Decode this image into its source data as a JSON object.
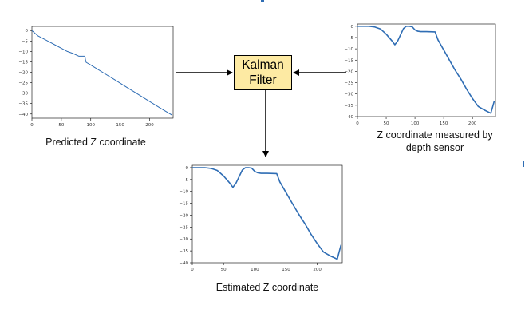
{
  "filter_label": "Kalman\nFilter",
  "captions": {
    "predicted": "Predicted Z coordinate",
    "measured_line1": "Z coordinate measured by",
    "measured_line2": "depth sensor",
    "estimated": "Estimated Z coordinate"
  },
  "colors": {
    "series": "#2f6db4",
    "filter_box": "#fdeaa3"
  },
  "chart_data": [
    {
      "id": "predicted",
      "type": "line",
      "xlim": [
        0,
        240
      ],
      "ylim": [
        -42,
        2
      ],
      "xticks": [
        0,
        50,
        100,
        150,
        200
      ],
      "yticks": [
        0,
        -5,
        -10,
        -15,
        -20,
        -25,
        -30,
        -35,
        -40
      ],
      "x": [
        0,
        10,
        20,
        30,
        40,
        50,
        60,
        70,
        80,
        90,
        91,
        92,
        100,
        120,
        140,
        160,
        180,
        200,
        220,
        238
      ],
      "y": [
        0,
        -2.5,
        -4,
        -5.5,
        -7,
        -8.5,
        -10,
        -11,
        -12.3,
        -12.3,
        -14,
        -15.2,
        -16.5,
        -20,
        -23.5,
        -27,
        -30.5,
        -34,
        -37.5,
        -40.5
      ]
    },
    {
      "id": "measured",
      "type": "line",
      "xlim": [
        0,
        240
      ],
      "ylim": [
        -40,
        1
      ],
      "xticks": [
        0,
        50,
        100,
        150,
        200
      ],
      "yticks": [
        0,
        -5,
        -10,
        -15,
        -20,
        -25,
        -30,
        -35,
        -40
      ],
      "x": [
        0,
        10,
        20,
        30,
        40,
        50,
        60,
        65,
        70,
        80,
        85,
        90,
        95,
        100,
        105,
        110,
        120,
        135,
        140,
        150,
        160,
        170,
        180,
        190,
        200,
        210,
        220,
        232,
        238
      ],
      "y": [
        0,
        0,
        0,
        -0.3,
        -1.2,
        -3.5,
        -6.5,
        -8.2,
        -6.5,
        -1,
        0,
        0,
        -0.2,
        -1.6,
        -2.2,
        -2.4,
        -2.4,
        -2.5,
        -6,
        -10.5,
        -15,
        -19.5,
        -23.5,
        -28,
        -32,
        -35.5,
        -37,
        -38.5,
        -33
      ]
    },
    {
      "id": "estimated",
      "type": "line",
      "xlim": [
        0,
        240
      ],
      "ylim": [
        -40,
        1
      ],
      "xticks": [
        0,
        50,
        100,
        150,
        200
      ],
      "yticks": [
        0,
        -5,
        -10,
        -15,
        -20,
        -25,
        -30,
        -35,
        -40
      ],
      "x": [
        0,
        10,
        20,
        30,
        40,
        50,
        60,
        65,
        70,
        80,
        85,
        90,
        95,
        100,
        105,
        110,
        120,
        135,
        140,
        150,
        160,
        170,
        180,
        190,
        200,
        210,
        220,
        232,
        238
      ],
      "y": [
        0,
        0,
        0,
        -0.3,
        -1.2,
        -3.5,
        -6.5,
        -8.3,
        -6.5,
        -1,
        0,
        0,
        -0.2,
        -1.6,
        -2.2,
        -2.4,
        -2.4,
        -2.5,
        -6,
        -10.5,
        -15,
        -19.5,
        -23.5,
        -28,
        -32,
        -35.5,
        -37,
        -38.5,
        -32.5
      ]
    }
  ]
}
